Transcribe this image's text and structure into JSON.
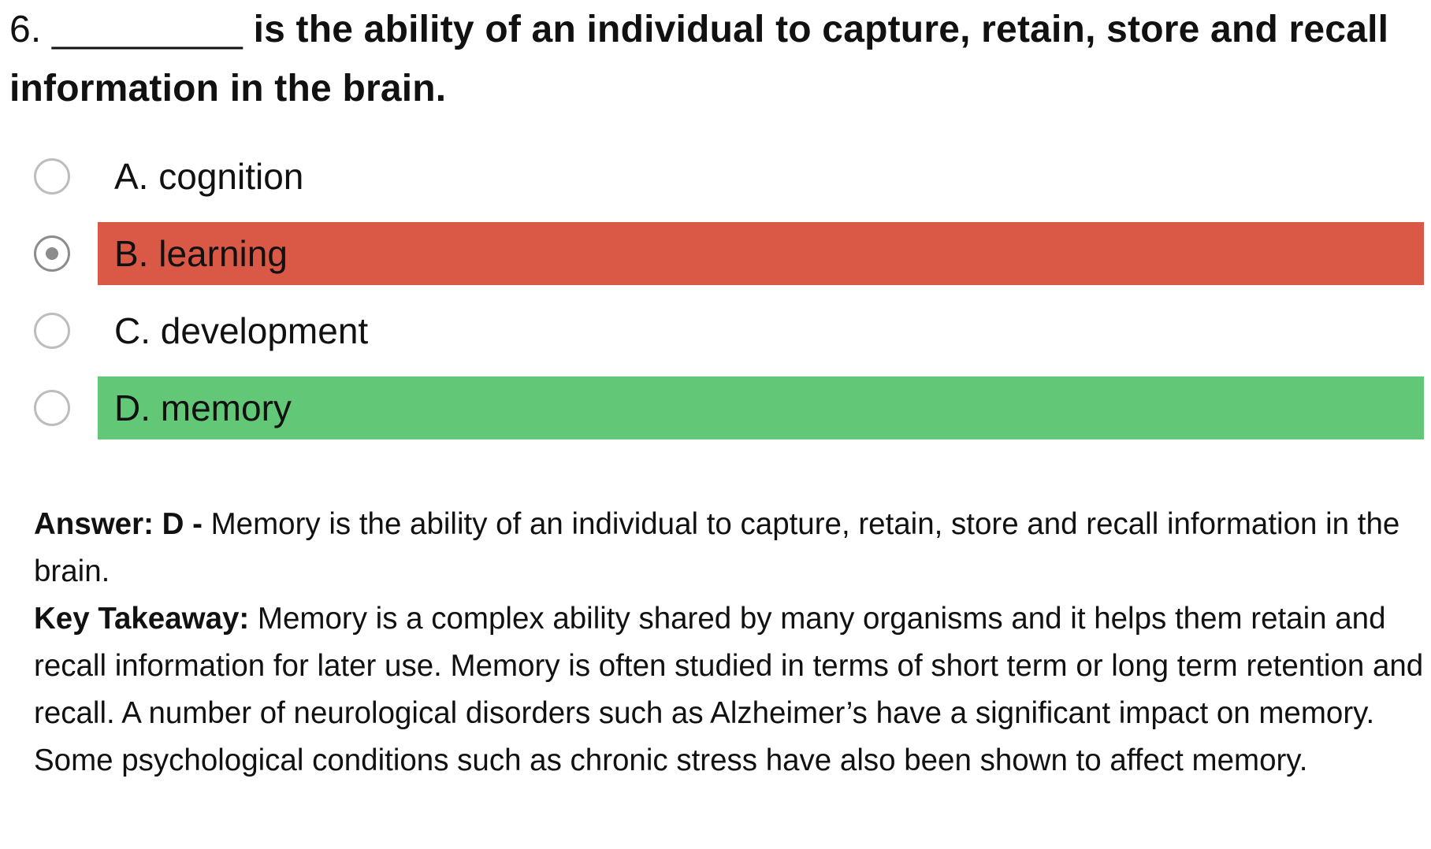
{
  "question": {
    "number": "6.",
    "blank": "_________",
    "stem": "is the ability of an individual to capture, retain, store and recall information in the brain."
  },
  "options": [
    {
      "label": "A. cognition",
      "state": "none",
      "selected": false
    },
    {
      "label": "B. learning",
      "state": "wrong",
      "selected": true
    },
    {
      "label": "C. development",
      "state": "none",
      "selected": false
    },
    {
      "label": "D. memory",
      "state": "correct",
      "selected": false
    }
  ],
  "colors": {
    "wrong": "#d95846",
    "correct": "#62c878",
    "radio_border": "#bdbdbd",
    "radio_selected": "#8c8c8c"
  },
  "answer": {
    "prefix": "Answer: D - ",
    "text": "Memory is the ability of an individual to capture, retain, store and recall information in the brain."
  },
  "takeaway": {
    "prefix": "Key Takeaway: ",
    "text": "Memory is a complex ability shared by many organisms and it helps them retain and recall information for later use. Memory is often studied in terms of short term or long term retention and recall. A number of neurological disorders such as Alzheimer’s have a significant impact on memory. Some psychological conditions such as chronic stress have also been shown to affect memory."
  }
}
